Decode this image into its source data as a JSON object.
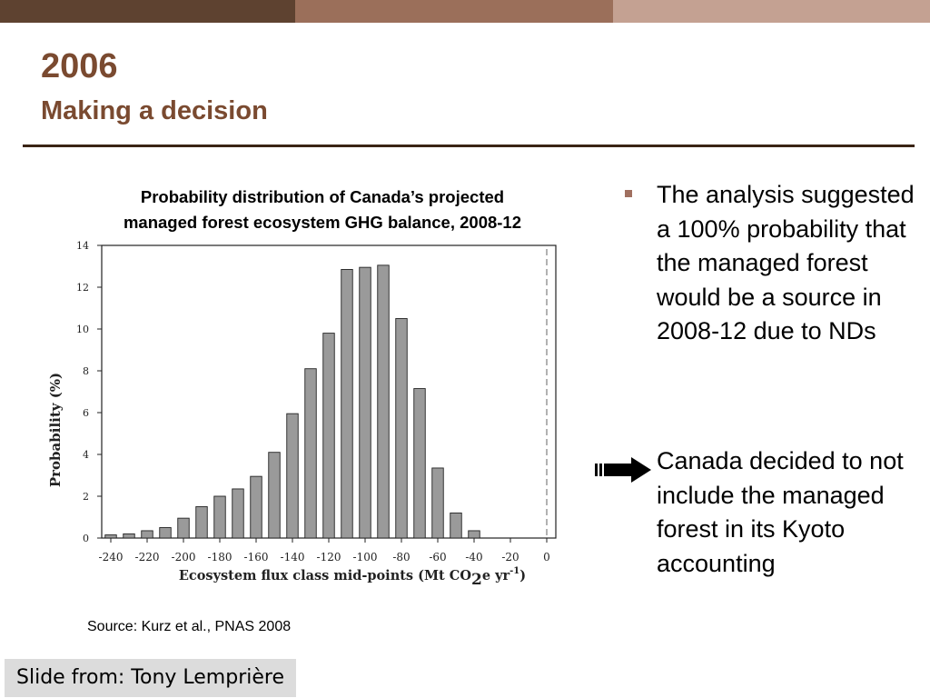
{
  "slide": {
    "title": "2006",
    "subtitle": "Making a decision",
    "chart_title_line1": "Probability distribution of Canada’s projected",
    "chart_title_line2": "managed forest ecosystem GHG balance, 2008-12",
    "source": "Source: Kurz et al., PNAS 2008",
    "bullets": [
      "The analysis suggested a 100% probability that the managed forest would be a source in 2008-12 due to NDs"
    ],
    "arrow_bullet": "Canada decided to not include the managed forest in its Kyoto accounting",
    "credit": "Slide from: Tony Lemprière",
    "colors": {
      "title": "#7a4a30",
      "bar_fill": "#9a9a9a",
      "bullet_marker": "#a07060"
    }
  },
  "chart_data": {
    "type": "bar",
    "title": "Probability distribution of Canada’s projected managed forest ecosystem GHG balance, 2008-12",
    "xlabel_prefix": "Ecosystem flux class mid-points (Mt CO",
    "xlabel_sub": "2",
    "xlabel_mid": "e yr",
    "xlabel_sup": "-1",
    "xlabel_suffix": ")",
    "ylabel": "Probability (%)",
    "xlim": [
      -245,
      5
    ],
    "ylim": [
      0,
      14
    ],
    "yticks": [
      0,
      2,
      4,
      6,
      8,
      10,
      12,
      14
    ],
    "xticks": [
      -240,
      -220,
      -200,
      -180,
      -160,
      -140,
      -120,
      -100,
      -80,
      -60,
      -40,
      -20,
      0
    ],
    "x": [
      -240,
      -230,
      -220,
      -210,
      -200,
      -190,
      -180,
      -170,
      -160,
      -150,
      -140,
      -130,
      -120,
      -110,
      -100,
      -90,
      -80,
      -70,
      -60,
      -50,
      -40
    ],
    "values": [
      0.15,
      0.2,
      0.35,
      0.5,
      0.95,
      1.5,
      2.0,
      2.35,
      2.95,
      4.1,
      5.95,
      8.1,
      9.8,
      12.85,
      12.95,
      13.05,
      10.5,
      7.15,
      3.35,
      1.2,
      0.35
    ],
    "reference_line_x": 0,
    "grid": false
  }
}
